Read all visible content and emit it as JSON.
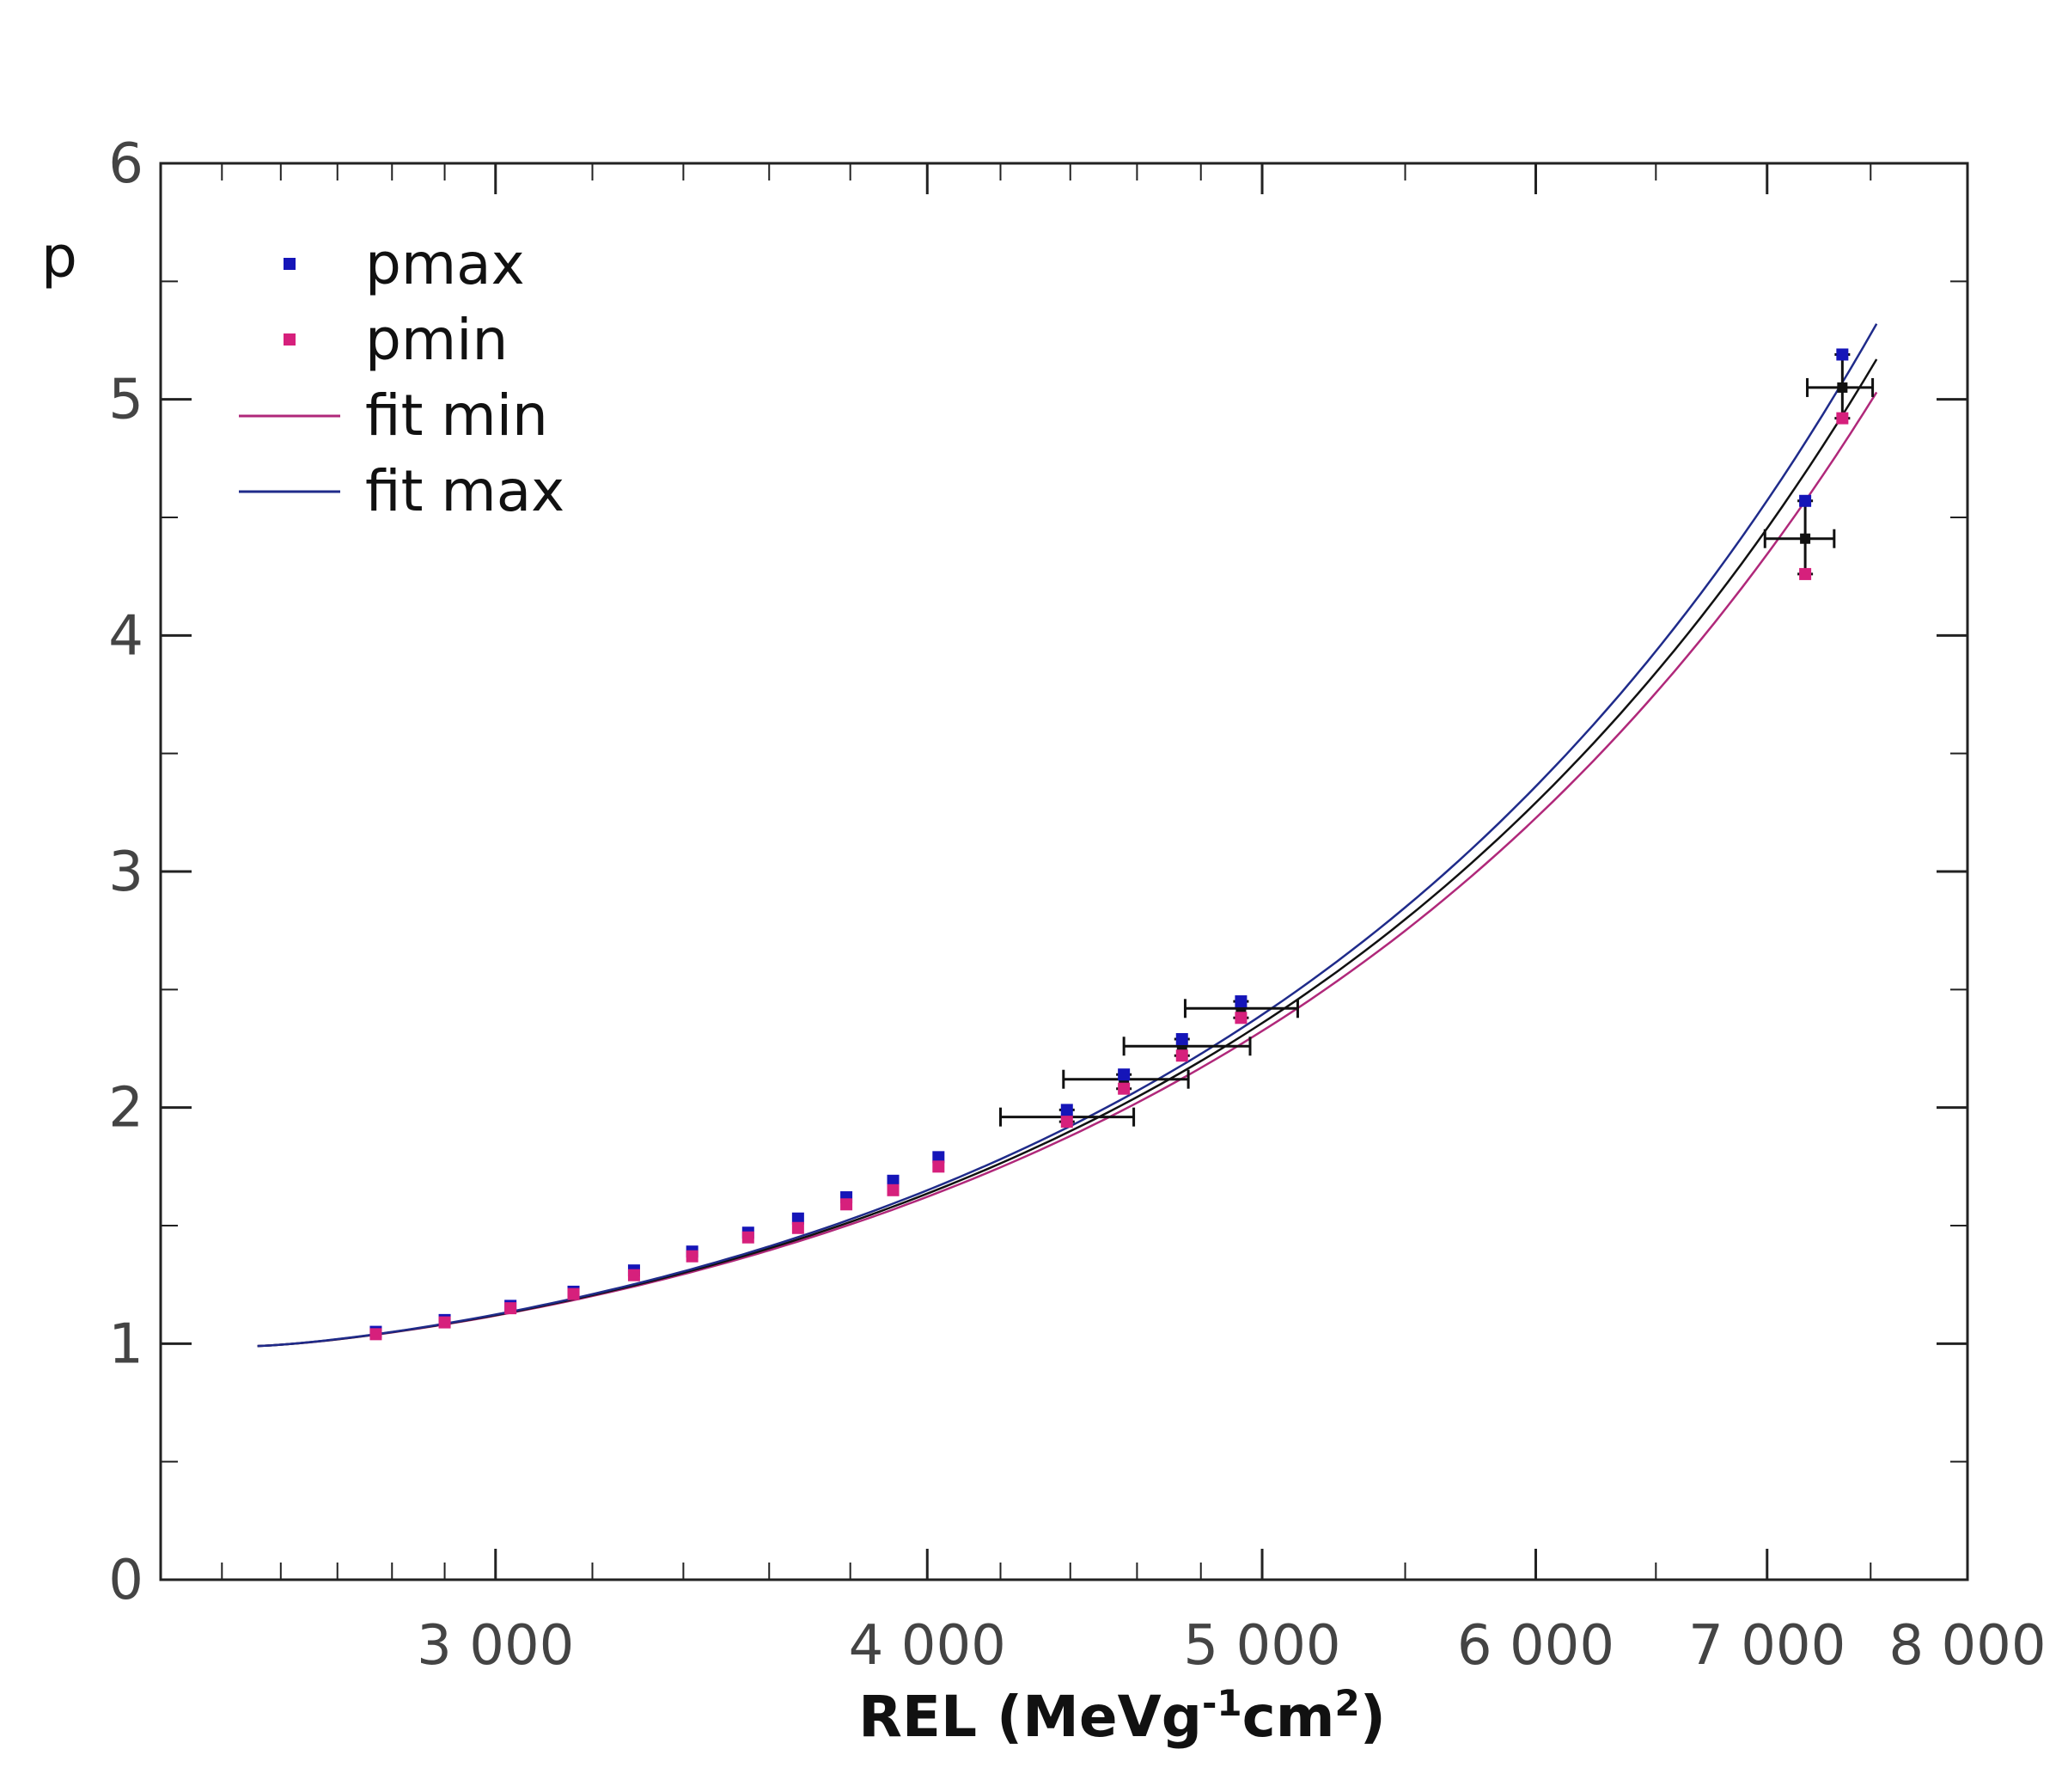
{
  "chart_data": {
    "type": "scatter",
    "xscale": "log",
    "xlim": [
      2400,
      8000
    ],
    "ylim": [
      0,
      6
    ],
    "ylabel": "p",
    "xlabel": {
      "main": "REL (MeVg",
      "sup1": "-1",
      "mid": "cm",
      "sup2": "2",
      "end": ")"
    },
    "x_ticks": [
      {
        "value": 3000,
        "label": "3 000"
      },
      {
        "value": 4000,
        "label": "4 000"
      },
      {
        "value": 5000,
        "label": "5 000"
      },
      {
        "value": 6000,
        "label": "6 000"
      },
      {
        "value": 7000,
        "label": "7 000"
      },
      {
        "value": 8000,
        "label": "8 000"
      }
    ],
    "y_ticks": [
      {
        "value": 0,
        "label": "0"
      },
      {
        "value": 1,
        "label": "1"
      },
      {
        "value": 2,
        "label": "2"
      },
      {
        "value": 3,
        "label": "3"
      },
      {
        "value": 4,
        "label": "4"
      },
      {
        "value": 5,
        "label": "5"
      },
      {
        "value": 6,
        "label": "6"
      }
    ],
    "colors": {
      "pmax": "#1515b8",
      "pmin": "#d6207c",
      "fit_min": "#b0287a",
      "fit_max": "#1f2b8a",
      "central": "#111111",
      "axis": "#222222"
    },
    "legend": [
      {
        "label": "pmax",
        "kind": "marker",
        "color_key": "pmax"
      },
      {
        "label": "pmin",
        "kind": "marker",
        "color_key": "pmin"
      },
      {
        "label": "fit min",
        "kind": "line",
        "color_key": "fit_min"
      },
      {
        "label": "fit max",
        "kind": "line",
        "color_key": "fit_max"
      }
    ],
    "pmax": [
      {
        "x": 2770,
        "y": 1.05
      },
      {
        "x": 2900,
        "y": 1.1
      },
      {
        "x": 3030,
        "y": 1.16
      },
      {
        "x": 3160,
        "y": 1.22
      },
      {
        "x": 3290,
        "y": 1.31
      },
      {
        "x": 3420,
        "y": 1.39
      },
      {
        "x": 3550,
        "y": 1.47
      },
      {
        "x": 3670,
        "y": 1.53
      },
      {
        "x": 3790,
        "y": 1.62
      },
      {
        "x": 3910,
        "y": 1.69
      },
      {
        "x": 4030,
        "y": 1.79
      },
      {
        "x": 4390,
        "y": 1.99
      },
      {
        "x": 4560,
        "y": 2.14
      },
      {
        "x": 4740,
        "y": 2.29
      },
      {
        "x": 4930,
        "y": 2.45
      },
      {
        "x": 7180,
        "y": 4.57
      },
      {
        "x": 7360,
        "y": 5.19
      }
    ],
    "pmin": [
      {
        "x": 2770,
        "y": 1.04
      },
      {
        "x": 2900,
        "y": 1.09
      },
      {
        "x": 3030,
        "y": 1.15
      },
      {
        "x": 3160,
        "y": 1.21
      },
      {
        "x": 3290,
        "y": 1.29
      },
      {
        "x": 3420,
        "y": 1.37
      },
      {
        "x": 3550,
        "y": 1.45
      },
      {
        "x": 3670,
        "y": 1.49
      },
      {
        "x": 3790,
        "y": 1.59
      },
      {
        "x": 3910,
        "y": 1.65
      },
      {
        "x": 4030,
        "y": 1.75
      },
      {
        "x": 4390,
        "y": 1.94
      },
      {
        "x": 4560,
        "y": 2.08
      },
      {
        "x": 4740,
        "y": 2.22
      },
      {
        "x": 4930,
        "y": 2.38
      },
      {
        "x": 7180,
        "y": 4.26
      },
      {
        "x": 7360,
        "y": 4.92
      }
    ],
    "central_points": [
      {
        "x": 4390,
        "y": 1.96,
        "xerr_low": 4200,
        "xerr_high": 4590
      },
      {
        "x": 4560,
        "y": 2.12,
        "xerr_low": 4380,
        "xerr_high": 4760
      },
      {
        "x": 4740,
        "y": 2.26,
        "xerr_low": 4560,
        "xerr_high": 4960
      },
      {
        "x": 4930,
        "y": 2.42,
        "xerr_low": 4750,
        "xerr_high": 5120
      },
      {
        "x": 7180,
        "y": 4.41,
        "xerr_low": 6990,
        "xerr_high": 7320
      },
      {
        "x": 7360,
        "y": 5.05,
        "xerr_low": 7190,
        "xerr_high": 7510
      }
    ],
    "fit_curves": {
      "x_start": 2560,
      "x_end": 7530,
      "y_start": 0.99,
      "fit_min_end": 5.03,
      "fit_max_end": 5.32,
      "central_end": 5.17
    }
  }
}
